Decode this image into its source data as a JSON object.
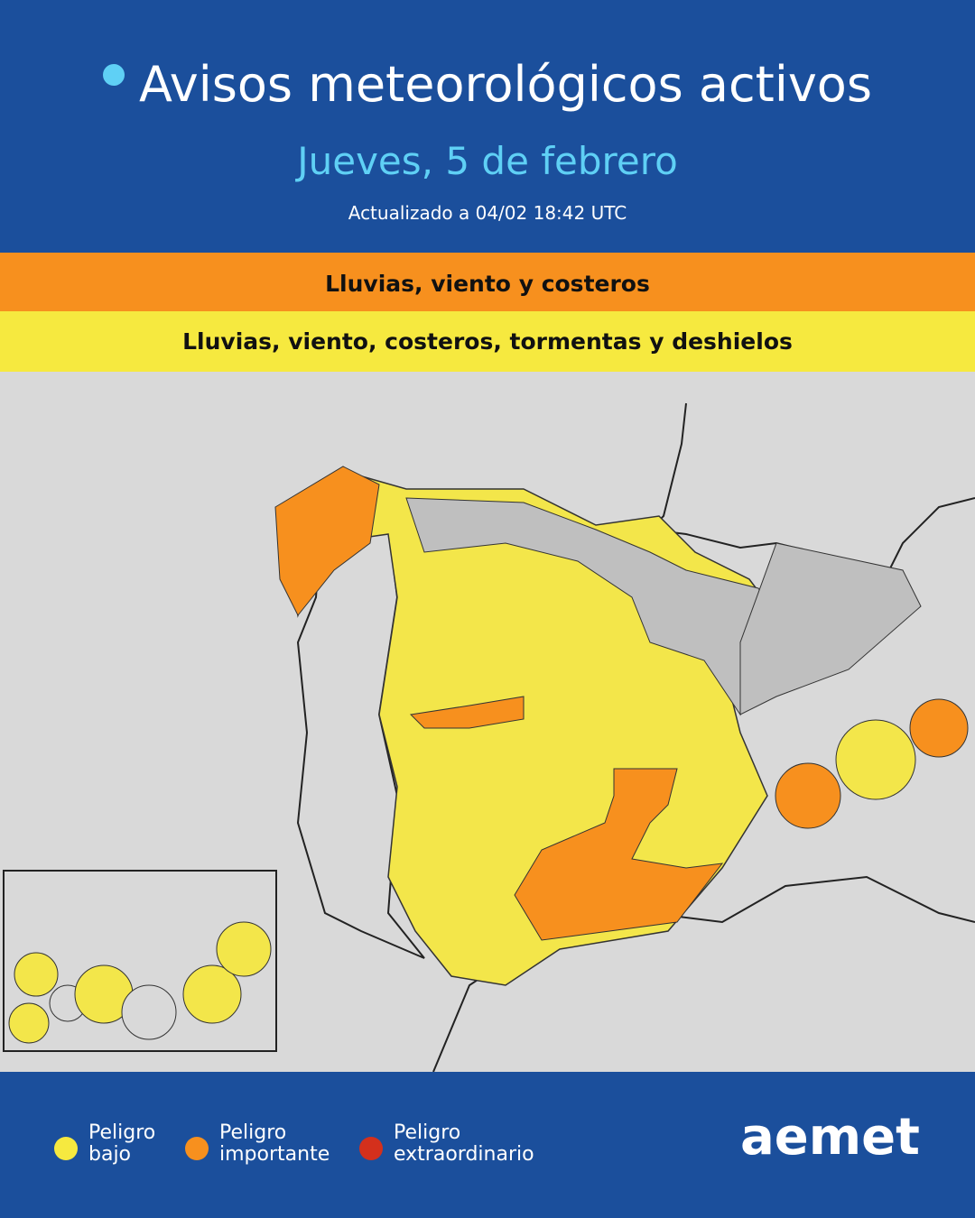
{
  "header": {
    "title": "Avisos meteorológicos activos",
    "date": "Jueves, 5 de febrero",
    "updated": "Actualizado a 04/02  18:42 UTC"
  },
  "bands": [
    {
      "level": "orange",
      "text": "Lluvias, viento y costeros"
    },
    {
      "level": "yellow",
      "text": "Lluvias, viento, costeros, tormentas y deshielos"
    }
  ],
  "legend": [
    {
      "label": "Peligro bajo"
    },
    {
      "label": "Peligro importante"
    },
    {
      "label": "Peligro extraordinario"
    }
  ],
  "logo": "aemet"
}
